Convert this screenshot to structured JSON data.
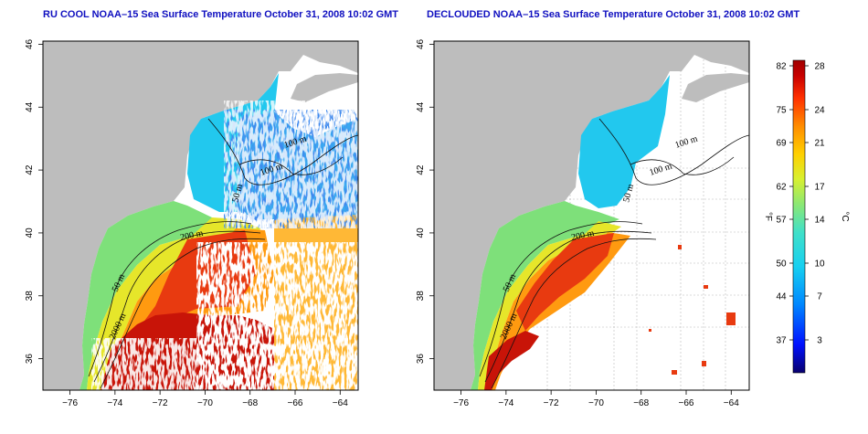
{
  "panels": [
    {
      "title": "RU COOL NOAA–15 Sea Surface Temperature October 31, 2008 10:02 GMT",
      "contour_labels": [
        "100 m",
        "100 m",
        "50 m",
        "200 m",
        "50 m",
        "2000 m"
      ]
    },
    {
      "title": "DECLOUDED NOAA–15 Sea Surface Temperature October 31, 2008 10:02 GMT",
      "contour_labels": [
        "100 m",
        "100 m",
        "50 m",
        "200 m",
        "50 m",
        "2000 m"
      ]
    }
  ],
  "axes": {
    "lon_ticks": [
      "−76",
      "−74",
      "−72",
      "−70",
      "−68",
      "−66",
      "−64"
    ],
    "lon_values": [
      -76,
      -74,
      -72,
      -70,
      -68,
      -66,
      -64
    ],
    "lon_range": [
      -77.2,
      -63.2
    ],
    "lat_ticks": [
      "36",
      "38",
      "40",
      "42",
      "44",
      "46"
    ],
    "lat_values": [
      36,
      38,
      40,
      42,
      44,
      46
    ],
    "lat_range": [
      35,
      46.1
    ]
  },
  "colorbar": {
    "fahrenheit_ticks": [
      "82",
      "75",
      "69",
      "62",
      "57",
      "50",
      "44",
      "37"
    ],
    "celsius_ticks": [
      "28",
      "24",
      "21",
      "17",
      "14",
      "10",
      "7",
      "3"
    ],
    "celsius_values": [
      28,
      24,
      21,
      17,
      14,
      10,
      7,
      3
    ],
    "range_c": [
      0,
      28.5
    ],
    "unit_f": "°F",
    "unit_c": "°C"
  },
  "colors": {
    "land": "#bdbdbd",
    "cloud": "#ffffff",
    "title": "#1010c0",
    "colormap": [
      "#08006e",
      "#0010ff",
      "#0088ff",
      "#17d0f0",
      "#40e0c8",
      "#8ce873",
      "#d8f030",
      "#ffd000",
      "#ff8c00",
      "#ff3000",
      "#c80000",
      "#a00000"
    ]
  }
}
